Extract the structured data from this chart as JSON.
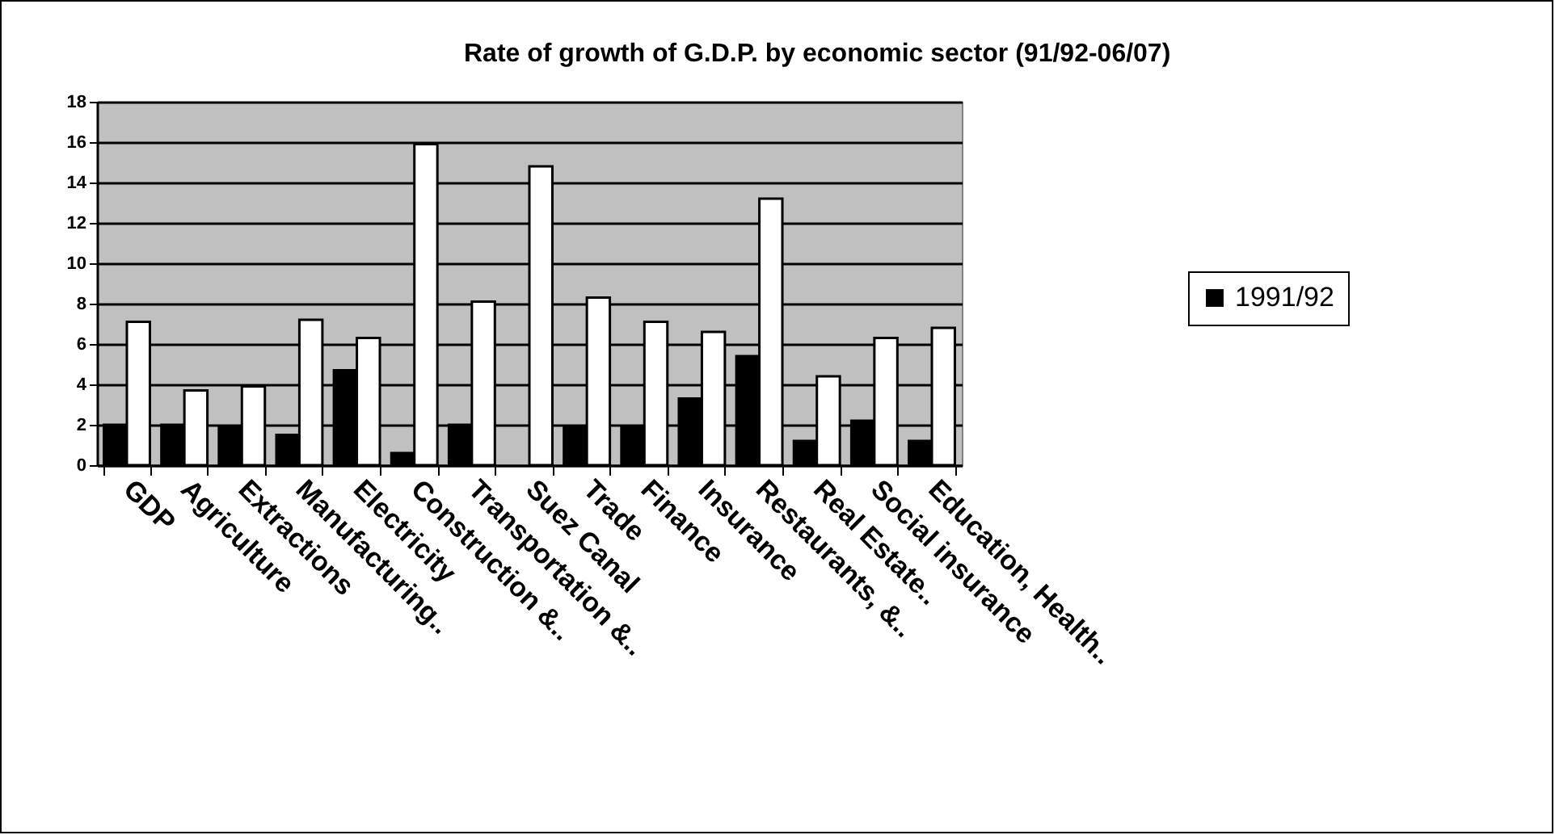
{
  "chart_data": {
    "type": "bar",
    "title": "Rate of growth of G.D.P. by economic sector (91/92-06/07)",
    "categories": [
      "GDP",
      "Agriculture",
      "Extractions",
      "Manufacturing..",
      "Electricity",
      "Construction &..",
      "Transportation &..",
      "Suez Canal",
      "Trade",
      "Finance",
      "Insurance",
      "Restaurants, &..",
      "Real Estate..",
      "Social insurance",
      "Education, Health.."
    ],
    "series": [
      {
        "name": "1991/92",
        "color": "#000000",
        "values": [
          2.0,
          2.0,
          1.9,
          1.5,
          4.7,
          0.6,
          2.0,
          null,
          1.9,
          1.9,
          3.3,
          5.4,
          1.2,
          2.2,
          1.2
        ]
      },
      {
        "color": "#ffffff",
        "values": [
          7.1,
          3.7,
          3.9,
          7.2,
          6.3,
          15.9,
          8.1,
          14.8,
          8.3,
          7.1,
          6.6,
          13.2,
          4.4,
          6.3,
          6.8
        ]
      }
    ],
    "ylim": [
      0,
      18
    ],
    "yticks": [
      0,
      2,
      4,
      6,
      8,
      10,
      12,
      14,
      16,
      18
    ],
    "grid": true,
    "legend": "right"
  }
}
